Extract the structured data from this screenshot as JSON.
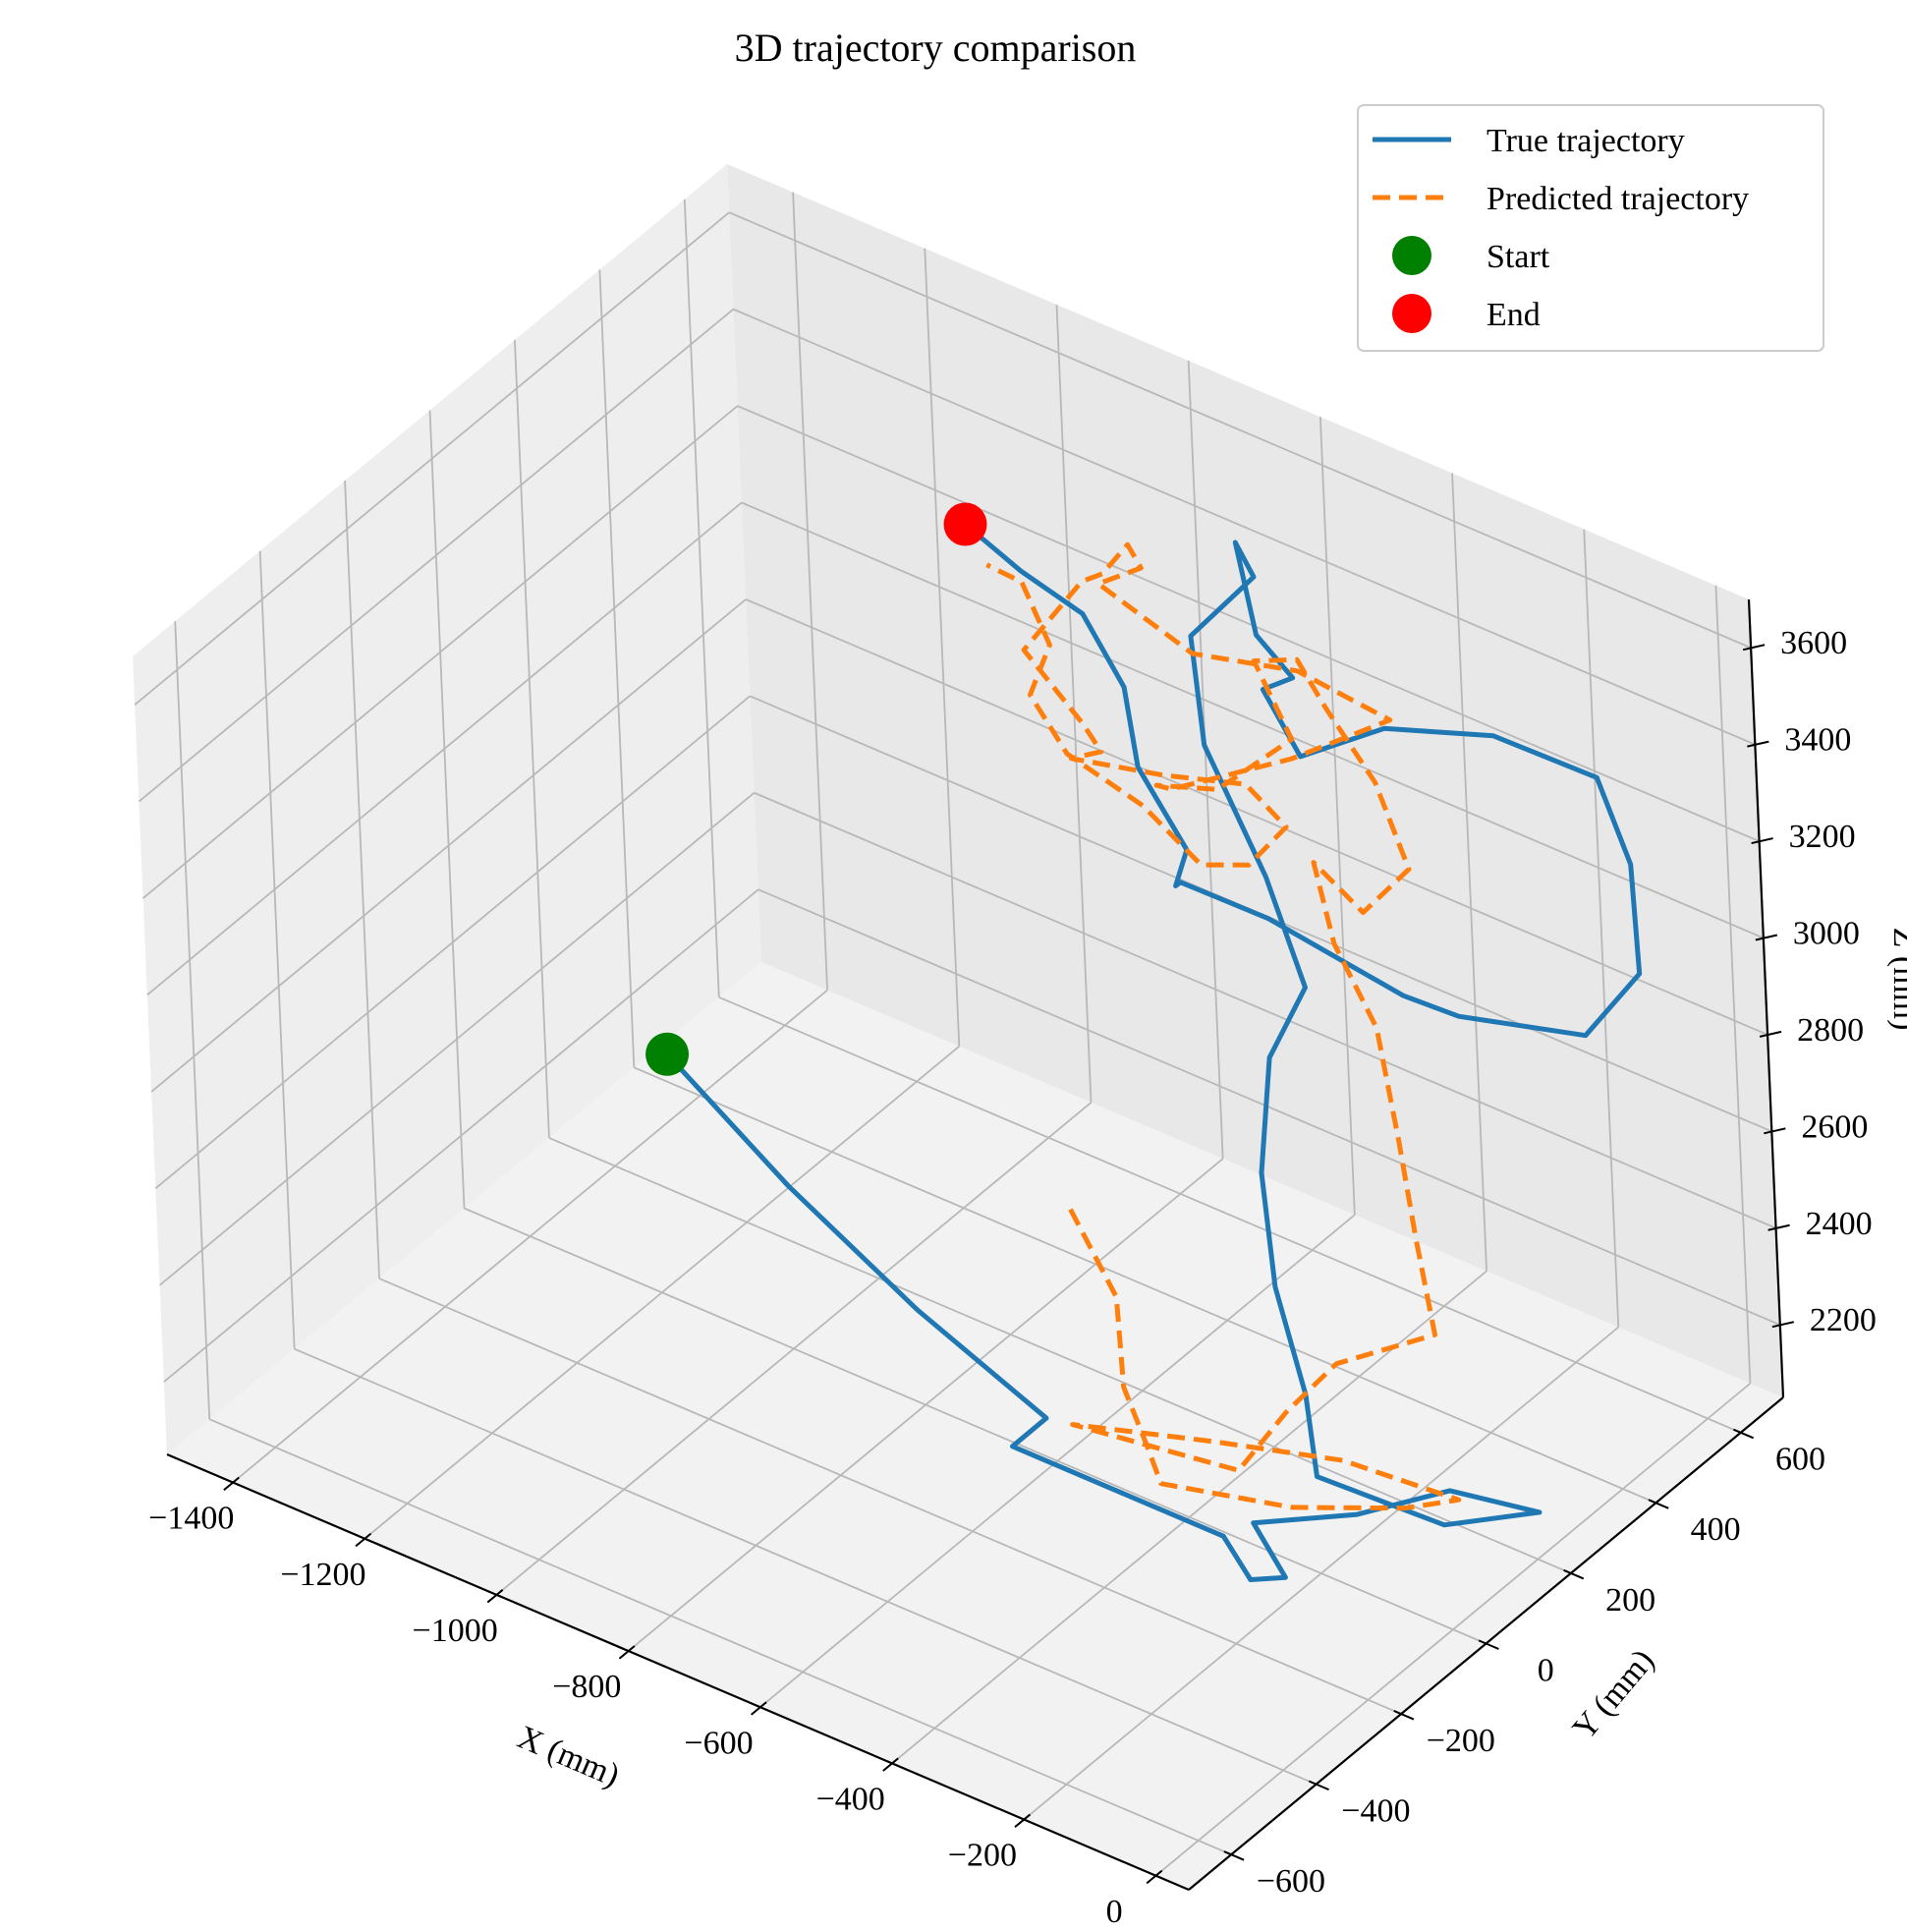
{
  "chart_data": {
    "type": "line",
    "title": "3D trajectory comparison",
    "xlabel": "X (mm)",
    "ylabel": "Y (mm)",
    "zlabel": "Z (mm)",
    "xlim": [
      -1500,
      50
    ],
    "ylim": [
      -700,
      700
    ],
    "zlim": [
      2050,
      3700
    ],
    "x_ticks": [
      -1400,
      -1200,
      -1000,
      -800,
      -600,
      -400,
      -200,
      0
    ],
    "x_tick_labels": [
      "−1400",
      "−1200",
      "−1000",
      "−800",
      "−600",
      "−400",
      "−200",
      "0"
    ],
    "y_ticks": [
      -600,
      -400,
      -200,
      0,
      200,
      400,
      600
    ],
    "y_tick_labels": [
      "−600",
      "−400",
      "−200",
      "0",
      "200",
      "400",
      "600"
    ],
    "z_ticks": [
      2200,
      2400,
      2600,
      2800,
      3000,
      3200,
      3400,
      3600
    ],
    "z_tick_labels": [
      "2200",
      "2400",
      "2600",
      "2800",
      "3000",
      "3200",
      "3400",
      "3600"
    ],
    "grid": true,
    "legend": {
      "position": "top-right"
    },
    "series": [
      {
        "name": "True trajectory",
        "style": "solid",
        "color": "#1f77b4",
        "points": [
          [
            -1380,
            300,
            2220
          ],
          [
            -1100,
            150,
            2220
          ],
          [
            -820,
            20,
            2220
          ],
          [
            -560,
            -80,
            2220
          ],
          [
            -560,
            -160,
            2220
          ],
          [
            -420,
            -160,
            2220
          ],
          [
            -240,
            -160,
            2220
          ],
          [
            -160,
            -220,
            2220
          ],
          [
            -140,
            -170,
            2200
          ],
          [
            -220,
            -120,
            2230
          ],
          [
            -120,
            -30,
            2240
          ],
          [
            -50,
            80,
            2250
          ],
          [
            60,
            120,
            2240
          ],
          [
            -20,
            20,
            2240
          ],
          [
            -200,
            0,
            2250
          ],
          [
            -280,
            100,
            2300
          ],
          [
            -320,
            100,
            2500
          ],
          [
            -320,
            80,
            2750
          ],
          [
            -300,
            80,
            3000
          ],
          [
            -240,
            80,
            3180
          ],
          [
            -280,
            60,
            3400
          ],
          [
            -380,
            80,
            3600
          ],
          [
            -380,
            60,
            3840
          ],
          [
            -340,
            150,
            3920
          ],
          [
            -400,
            200,
            3920
          ],
          [
            -340,
            150,
            3800
          ],
          [
            -300,
            170,
            3720
          ],
          [
            -340,
            160,
            3680
          ],
          [
            -300,
            180,
            3550
          ],
          [
            -250,
            300,
            3550
          ],
          [
            -150,
            400,
            3520
          ],
          [
            -20,
            440,
            3480
          ],
          [
            40,
            420,
            3350
          ],
          [
            60,
            400,
            3150
          ],
          [
            20,
            330,
            3050
          ],
          [
            -100,
            220,
            3100
          ],
          [
            -150,
            170,
            3150
          ],
          [
            -360,
            180,
            3180
          ],
          [
            -480,
            160,
            3200
          ],
          [
            -420,
            60,
            3300
          ],
          [
            -380,
            30,
            3420
          ],
          [
            -450,
            30,
            3550
          ],
          [
            -500,
            80,
            3650
          ],
          [
            -600,
            140,
            3700
          ],
          [
            -720,
            180,
            3690
          ],
          [
            -850,
            250,
            3660
          ]
        ]
      },
      {
        "name": "Predicted trajectory",
        "style": "dashed",
        "color": "#ff7f0e",
        "points": [
          [
            -740,
            260,
            2300
          ],
          [
            -600,
            150,
            2280
          ],
          [
            -520,
            40,
            2220
          ],
          [
            -420,
            -60,
            2230
          ],
          [
            -360,
            -120,
            2230
          ],
          [
            -200,
            -60,
            2230
          ],
          [
            -80,
            20,
            2240
          ],
          [
            -30,
            70,
            2250
          ],
          [
            -200,
            60,
            2240
          ],
          [
            -360,
            0,
            2230
          ],
          [
            -520,
            -80,
            2230
          ],
          [
            -280,
            -60,
            2260
          ],
          [
            -230,
            -20,
            2380
          ],
          [
            -190,
            40,
            2460
          ],
          [
            -90,
            120,
            2520
          ],
          [
            -140,
            160,
            2660
          ],
          [
            -160,
            160,
            2850
          ],
          [
            -180,
            150,
            3080
          ],
          [
            -240,
            150,
            3220
          ],
          [
            -280,
            170,
            3350
          ],
          [
            -200,
            160,
            3300
          ],
          [
            -140,
            180,
            3410
          ],
          [
            -200,
            200,
            3540
          ],
          [
            -300,
            240,
            3610
          ],
          [
            -360,
            270,
            3650
          ],
          [
            -420,
            260,
            3620
          ],
          [
            -360,
            250,
            3500
          ],
          [
            -410,
            150,
            3440
          ],
          [
            -470,
            100,
            3450
          ],
          [
            -420,
            60,
            3500
          ],
          [
            -300,
            160,
            3560
          ],
          [
            -200,
            240,
            3640
          ],
          [
            -340,
            240,
            3660
          ],
          [
            -460,
            180,
            3670
          ],
          [
            -560,
            120,
            3800
          ],
          [
            -500,
            130,
            3860
          ],
          [
            -560,
            190,
            3830
          ],
          [
            -580,
            160,
            3780
          ],
          [
            -640,
            200,
            3700
          ],
          [
            -700,
            150,
            3560
          ],
          [
            -600,
            130,
            3480
          ],
          [
            -560,
            110,
            3460
          ],
          [
            -600,
            100,
            3430
          ],
          [
            -500,
            160,
            3410
          ],
          [
            -400,
            200,
            3420
          ],
          [
            -320,
            170,
            3400
          ],
          [
            -360,
            140,
            3320
          ],
          [
            -420,
            120,
            3300
          ],
          [
            -520,
            140,
            3350
          ],
          [
            -640,
            150,
            3380
          ],
          [
            -700,
            160,
            3460
          ],
          [
            -680,
            180,
            3560
          ],
          [
            -760,
            240,
            3600
          ],
          [
            -840,
            280,
            3560
          ]
        ]
      }
    ],
    "markers": [
      {
        "name": "Start",
        "color": "#008000",
        "point": [
          -1380,
          300,
          2220
        ]
      },
      {
        "name": "End",
        "color": "#ff0000",
        "point": [
          -850,
          250,
          3660
        ]
      }
    ]
  }
}
